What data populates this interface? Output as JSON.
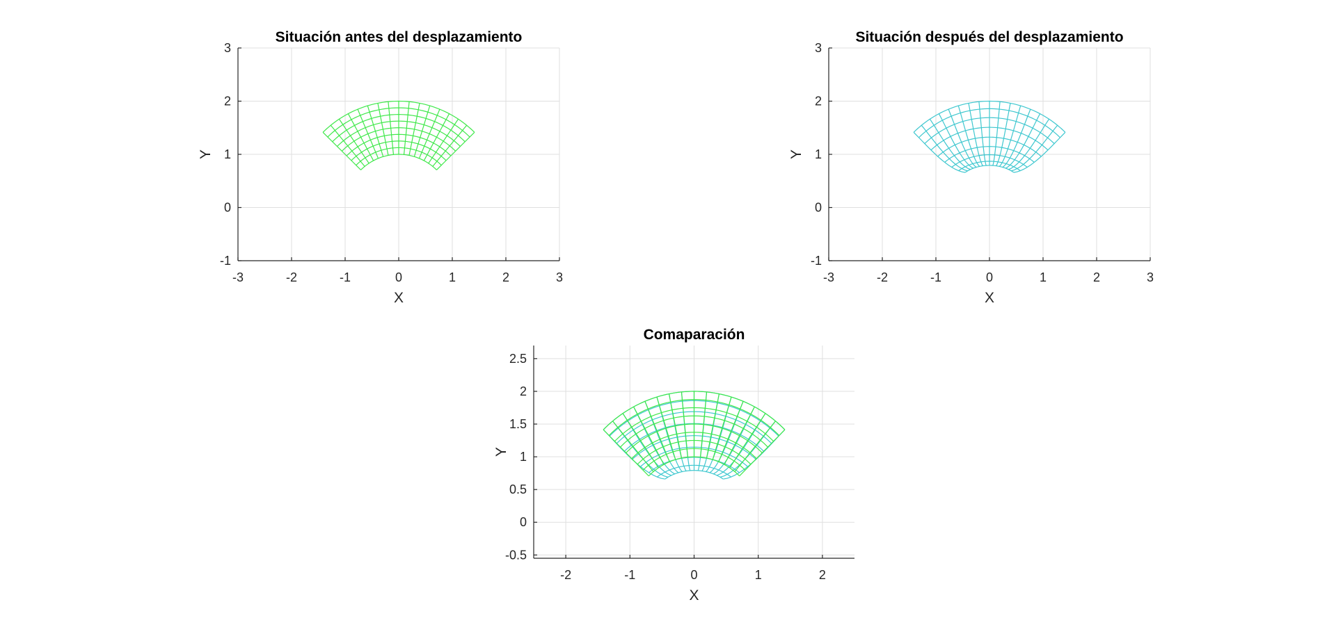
{
  "chart_data": [
    {
      "type": "mesh",
      "title": "Situación antes del desplazamiento",
      "xlabel": "X",
      "ylabel": "Y",
      "xlim": [
        -3,
        3
      ],
      "ylim": [
        -1,
        3
      ],
      "xticks": [
        -3,
        -2,
        -1,
        0,
        1,
        2,
        3
      ],
      "yticks": [
        -1,
        0,
        1,
        2,
        3
      ],
      "grid": true,
      "meshes": [
        {
          "style": "before",
          "color": "#3fe84a",
          "r_inner": 1,
          "r_outer": 2,
          "theta_start_deg": 45,
          "theta_end_deg": 135,
          "radial_divisions": 8,
          "angular_divisions": 16
        }
      ]
    },
    {
      "type": "mesh",
      "title": "Situación después del desplazamiento",
      "xlabel": "X",
      "ylabel": "Y",
      "xlim": [
        -3,
        3
      ],
      "ylim": [
        -1,
        3
      ],
      "xticks": [
        -3,
        -2,
        -1,
        0,
        1,
        2,
        3
      ],
      "yticks": [
        -1,
        0,
        1,
        2,
        3
      ],
      "grid": true,
      "meshes": [
        {
          "style": "after",
          "color": "#3ec7cf",
          "r_inner": 1,
          "r_outer": 2,
          "theta_start_deg": 45,
          "theta_end_deg": 135,
          "radial_divisions": 8,
          "angular_divisions": 16,
          "lowest_y": 0.66
        }
      ]
    },
    {
      "type": "mesh",
      "title": "Comaparación",
      "xlabel": "X",
      "ylabel": "Y",
      "xlim": [
        -2.5,
        2.5
      ],
      "ylim": [
        -0.55,
        2.7
      ],
      "xticks": [
        -2,
        -1,
        0,
        1,
        2
      ],
      "yticks": [
        -0.5,
        0,
        0.5,
        1,
        1.5,
        2,
        2.5
      ],
      "ytick_labels": [
        "-0.5",
        "0",
        "0.5",
        "1",
        "1.5",
        "2",
        "2.5"
      ],
      "grid": true,
      "meshes": [
        {
          "style": "after",
          "color": "#3ec7cf",
          "r_inner": 1,
          "r_outer": 2,
          "theta_start_deg": 45,
          "theta_end_deg": 135,
          "radial_divisions": 8,
          "angular_divisions": 16,
          "lowest_y": 0.66
        },
        {
          "style": "before",
          "color": "#3fe84a",
          "r_inner": 1,
          "r_outer": 2,
          "theta_start_deg": 45,
          "theta_end_deg": 135,
          "radial_divisions": 8,
          "angular_divisions": 16
        }
      ]
    }
  ]
}
